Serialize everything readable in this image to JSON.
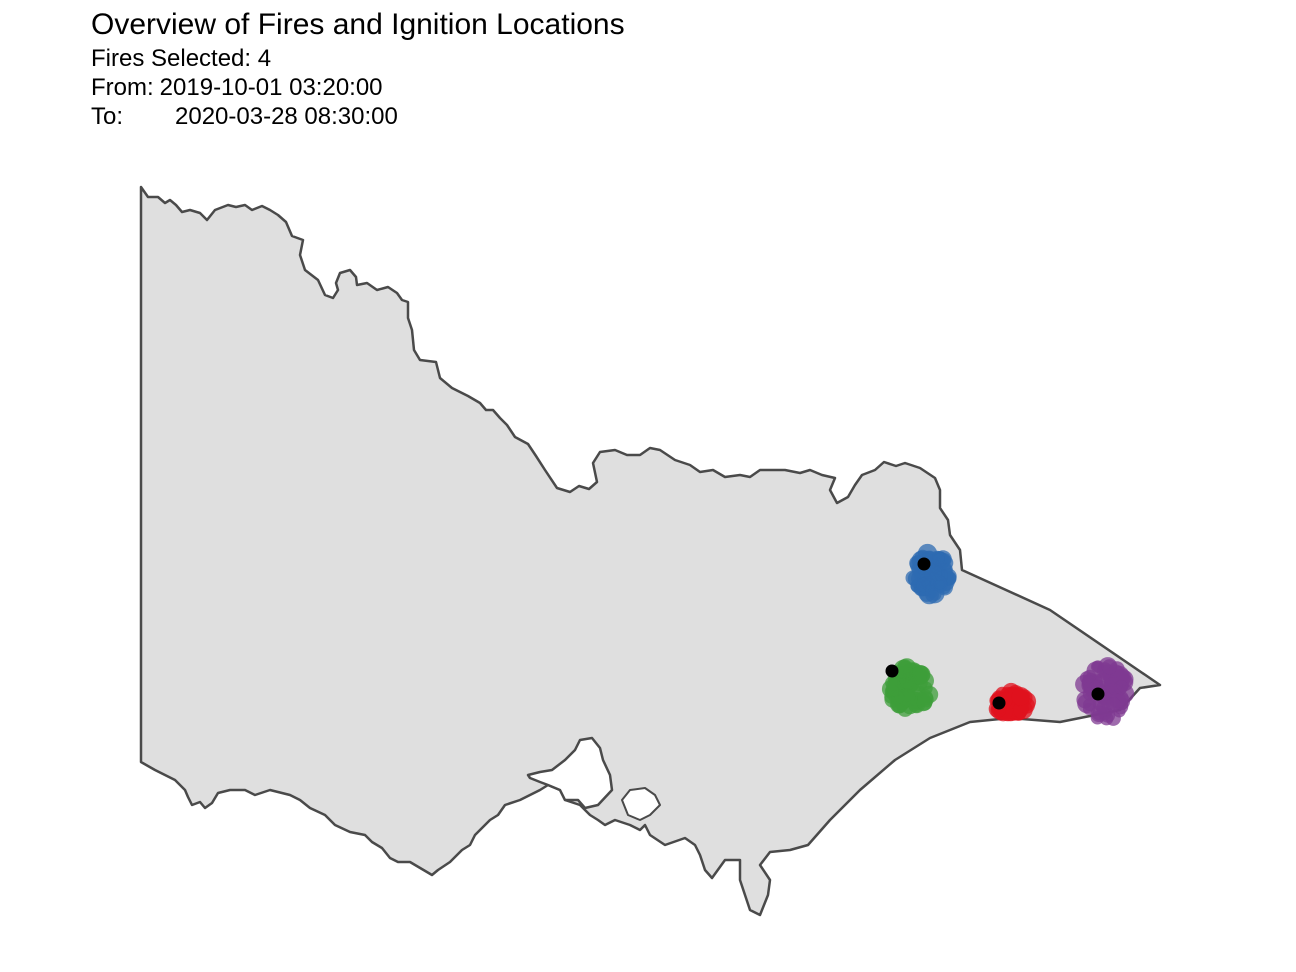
{
  "header": {
    "title": "Overview of Fires and Ignition Locations",
    "selected_line": "Fires Selected: 4",
    "from_label": "From:",
    "from_value": "2019-10-01 03:20:00",
    "to_label": "To:",
    "to_value": "2020-03-28 08:30:00"
  },
  "map": {
    "region": "state-outline",
    "fill_color": "#dfdfdf",
    "stroke_color": "#4a4a4a",
    "ignition_color": "#000000",
    "fires": [
      {
        "id": "fire-blue",
        "color": "#2d6bb2"
      },
      {
        "id": "fire-green",
        "color": "#3e9e3a"
      },
      {
        "id": "fire-red",
        "color": "#e0121d"
      },
      {
        "id": "fire-purple",
        "color": "#7f3a92"
      }
    ]
  }
}
